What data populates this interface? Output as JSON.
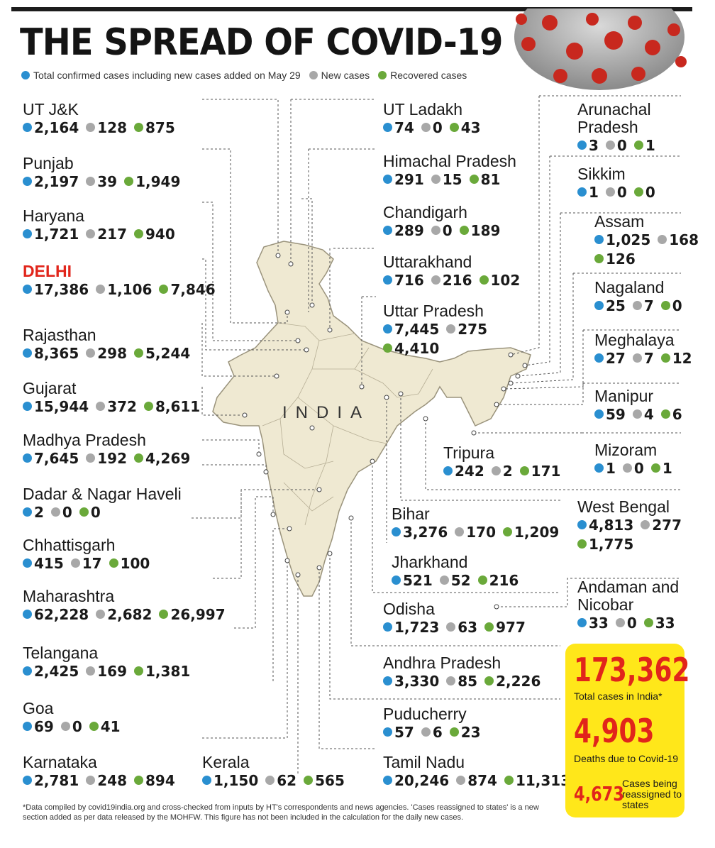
{
  "title": "THE SPREAD OF COVID-19",
  "legend": {
    "total": "Total confirmed cases including new cases added on May 29",
    "new": "New cases",
    "recovered": "Recovered cases"
  },
  "colors": {
    "total": "#2a8fd0",
    "new": "#a8a8a8",
    "recovered": "#6aa93a",
    "highlight": "#e1251b",
    "box": "#ffe71a"
  },
  "map_label": "INDIA",
  "states": [
    {
      "name": "UT J&K",
      "total": "2,164",
      "new": "128",
      "rec": "875"
    },
    {
      "name": "Punjab",
      "total": "2,197",
      "new": "39",
      "rec": "1,949"
    },
    {
      "name": "Haryana",
      "total": "1,721",
      "new": "217",
      "rec": "940"
    },
    {
      "name": "DELHI",
      "total": "17,386",
      "new": "1,106",
      "rec": "7,846"
    },
    {
      "name": "Rajasthan",
      "total": "8,365",
      "new": "298",
      "rec": "5,244"
    },
    {
      "name": "Gujarat",
      "total": "15,944",
      "new": "372",
      "rec": "8,611"
    },
    {
      "name": "Madhya Pradesh",
      "total": "7,645",
      "new": "192",
      "rec": "4,269"
    },
    {
      "name": "Dadar & Nagar Haveli",
      "total": "2",
      "new": "0",
      "rec": "0"
    },
    {
      "name": "Chhattisgarh",
      "total": "415",
      "new": "17",
      "rec": "100"
    },
    {
      "name": "Maharashtra",
      "total": "62,228",
      "new": "2,682",
      "rec": "26,997"
    },
    {
      "name": "Telangana",
      "total": "2,425",
      "new": "169",
      "rec": "1,381"
    },
    {
      "name": "Goa",
      "total": "69",
      "new": "0",
      "rec": "41"
    },
    {
      "name": "Karnataka",
      "total": "2,781",
      "new": "248",
      "rec": "894"
    },
    {
      "name": "Kerala",
      "total": "1,150",
      "new": "62",
      "rec": "565"
    },
    {
      "name": "UT Ladakh",
      "total": "74",
      "new": "0",
      "rec": "43"
    },
    {
      "name": "Himachal Pradesh",
      "total": "291",
      "new": "15",
      "rec": "81"
    },
    {
      "name": "Chandigarh",
      "total": "289",
      "new": "0",
      "rec": "189"
    },
    {
      "name": "Uttarakhand",
      "total": "716",
      "new": "216",
      "rec": "102"
    },
    {
      "name": "Uttar Pradesh",
      "total": "7,445",
      "new": "275",
      "rec": "4,410"
    },
    {
      "name": "Tripura",
      "total": "242",
      "new": "2",
      "rec": "171"
    },
    {
      "name": "Bihar",
      "total": "3,276",
      "new": "170",
      "rec": "1,209"
    },
    {
      "name": "Jharkhand",
      "total": "521",
      "new": "52",
      "rec": "216"
    },
    {
      "name": "Odisha",
      "total": "1,723",
      "new": "63",
      "rec": "977"
    },
    {
      "name": "Andhra Pradesh",
      "total": "3,330",
      "new": "85",
      "rec": "2,226"
    },
    {
      "name": "Puducherry",
      "total": "57",
      "new": "6",
      "rec": "23"
    },
    {
      "name": "Tamil Nadu",
      "total": "20,246",
      "new": "874",
      "rec": "11,313"
    },
    {
      "name": "Arunachal Pradesh",
      "total": "3",
      "new": "0",
      "rec": "1"
    },
    {
      "name": "Sikkim",
      "total": "1",
      "new": "0",
      "rec": "0"
    },
    {
      "name": "Assam",
      "total": "1,025",
      "new": "168",
      "rec": "126"
    },
    {
      "name": "Nagaland",
      "total": "25",
      "new": "7",
      "rec": "0"
    },
    {
      "name": "Meghalaya",
      "total": "27",
      "new": "7",
      "rec": "12"
    },
    {
      "name": "Manipur",
      "total": "59",
      "new": "4",
      "rec": "6"
    },
    {
      "name": "Mizoram",
      "total": "1",
      "new": "0",
      "rec": "1"
    },
    {
      "name": "West Bengal",
      "total": "4,813",
      "new": "277",
      "rec": "1,775"
    },
    {
      "name": "Andaman and Nicobar",
      "total": "33",
      "new": "0",
      "rec": "33"
    }
  ],
  "summary": {
    "total_cases": "173,362",
    "total_cases_label": "Total cases in India*",
    "deaths": "4,903",
    "deaths_label": "Deaths due to Covid-19",
    "reassigned": "4,673",
    "reassigned_label": "Cases being reassigned to states"
  },
  "footnote": "*Data compiled by covid19india.org and cross-checked from inputs by HT's correspondents and news agencies. 'Cases reassigned to states' is a new section added as per data released by the MOHFW. This figure has not been included in the calculation for the daily new cases."
}
